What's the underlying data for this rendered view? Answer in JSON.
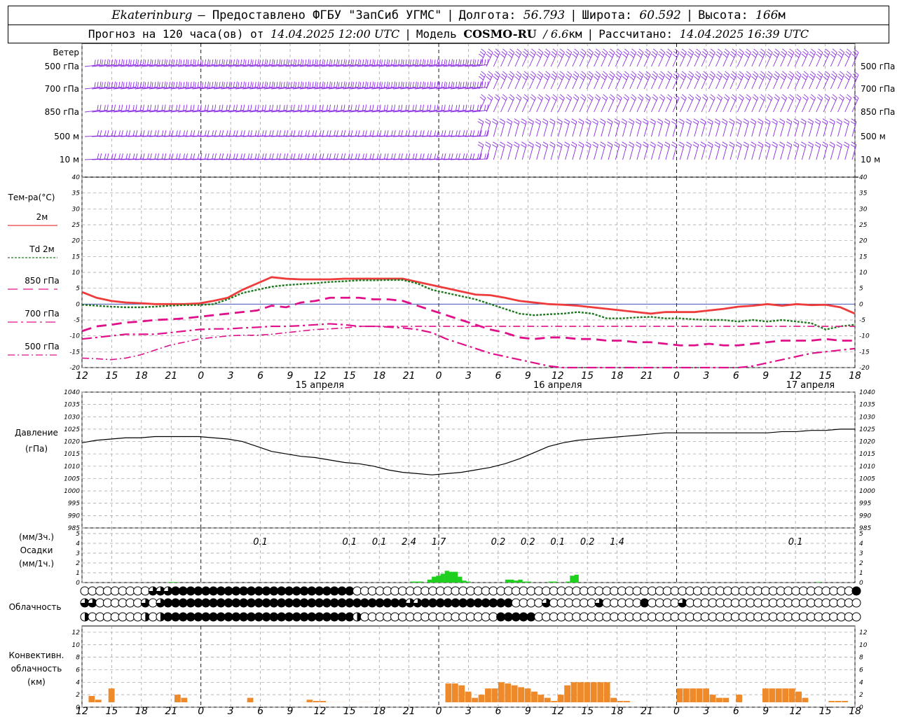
{
  "header": {
    "station": "Ekaterinburg",
    "provider": "— Предоставлено ФГБУ \"ЗапСиб УГМС\"",
    "lon_label": "Долгота:",
    "lon_value": "56.793",
    "lat_label": "Широта:",
    "lat_value": "60.592",
    "alt_label": "Высота:",
    "alt_value": "166",
    "alt_unit": "м",
    "forecast_label": "Прогноз на 120 часа(ов) от",
    "forecast_time": "14.04.2025 12:00 UTC",
    "model_label": "Модель",
    "model_name": "COSMO-RU",
    "model_res": "/ 6.6",
    "model_res_unit": "км",
    "calc_label": "Рассчитано:",
    "calc_time": "14.04.2025 16:39 UTC"
  },
  "colors": {
    "wind": "#8a2be2",
    "t2m": "#ee3b3b",
    "td2m": "#1e7a1e",
    "t850": "#e0108a",
    "precip": "#1ecf1e",
    "conv": "#ef8a2a",
    "grid": "#9a9a9a",
    "zero": "#2a3faa"
  },
  "chart_data": {
    "type": "line",
    "x_ticks": [
      "12",
      "15",
      "18",
      "21",
      "0",
      "3",
      "6",
      "9",
      "12",
      "15",
      "18",
      "21",
      "0",
      "3",
      "6",
      "9",
      "12",
      "15",
      "18",
      "21",
      "0",
      "3",
      "6",
      "9",
      "12",
      "15",
      "18"
    ],
    "date_labels": [
      {
        "label": "15 апреля",
        "index": 8
      },
      {
        "label": "16 апреля",
        "index": 16
      },
      {
        "label": "17 апреля",
        "index": 24.5
      }
    ],
    "wind": {
      "title": "Ветер",
      "levels": [
        "500 гПа",
        "700 гПа",
        "850 гПа",
        "500 м",
        "10  м"
      ]
    },
    "temperature": {
      "title": "Тем-ра(°C)",
      "ylim": [
        -20,
        40
      ],
      "ticks": [
        40,
        35,
        30,
        25,
        20,
        15,
        10,
        5,
        0,
        -5,
        -10,
        -15,
        -20
      ],
      "series": [
        {
          "name": "2м",
          "values": [
            3.8,
            2,
            1,
            0.5,
            0.3,
            0,
            0,
            0,
            0.2,
            1,
            2,
            4.5,
            6.5,
            8.5,
            8,
            7.8,
            7.8,
            7.8,
            8,
            8,
            8,
            8,
            8,
            7,
            6,
            5,
            4,
            3,
            2.8,
            2,
            1,
            0.5,
            0,
            -0.2,
            -0.5,
            -1,
            -1.5,
            -2,
            -2.5,
            -3,
            -2.5,
            -2.5,
            -2.5,
            -2,
            -1.5,
            -0.8,
            -0.5,
            0,
            -0.5,
            0,
            -0.3,
            -0.2,
            -1,
            -3
          ]
        },
        {
          "name": "Td 2м",
          "values": [
            -0.2,
            -0.5,
            -0.8,
            -1,
            -1,
            -0.8,
            -0.5,
            -0.3,
            -0.3,
            0,
            1.5,
            3.5,
            4.5,
            5.5,
            6,
            6.3,
            6.6,
            7,
            7.2,
            7.5,
            7.5,
            7.6,
            7.6,
            6.5,
            4.5,
            3.5,
            2.5,
            1.5,
            0,
            -1.5,
            -3,
            -3.5,
            -3.2,
            -3,
            -2.5,
            -3,
            -4.5,
            -4.5,
            -4.2,
            -4,
            -4.5,
            -4.5,
            -4.8,
            -5,
            -5,
            -5.5,
            -5,
            -5.5,
            -5,
            -5.5,
            -6,
            -8,
            -7,
            -6.5
          ]
        },
        {
          "name": "850 гПа",
          "values": [
            -8.5,
            -7,
            -6.5,
            -5.8,
            -5.5,
            -5,
            -4.8,
            -4.5,
            -4,
            -3.5,
            -3,
            -2.5,
            -2,
            -0.5,
            -1,
            0.5,
            1,
            2,
            2,
            2,
            1.5,
            1.5,
            1,
            -0.5,
            -2,
            -3.5,
            -5,
            -6.5,
            -8,
            -9,
            -10.5,
            -11,
            -10.5,
            -10.5,
            -11,
            -11,
            -11.5,
            -11.5,
            -12,
            -12,
            -12.5,
            -13,
            -13,
            -12.5,
            -13,
            -13,
            -12.5,
            -12,
            -11.5,
            -11.5,
            -11.5,
            -11,
            -11.5,
            -11.5
          ]
        },
        {
          "name": "700 гПа",
          "values": [
            -11,
            -10.5,
            -10,
            -9.5,
            -9.5,
            -9.5,
            -9,
            -8.5,
            -8,
            -7.8,
            -7.8,
            -7.5,
            -7.3,
            -7,
            -7,
            -6.8,
            -6.5,
            -6.2,
            -6.5,
            -7,
            -7,
            -7.2,
            -7.5,
            -8,
            -9,
            -11,
            -12.5,
            -14,
            -15.5,
            -16.5,
            -17.5,
            -18.5,
            -19.5,
            -20,
            -20,
            -20,
            -20,
            -20,
            -20,
            -20,
            -20,
            -20,
            -20,
            -20,
            -20,
            -20,
            -19.5,
            -18.5,
            -17.5,
            -16.5,
            -15.5,
            -15,
            -14.5,
            -14
          ]
        },
        {
          "name": "500 гПа",
          "values": [
            -17,
            -17.2,
            -17.5,
            -17,
            -16,
            -14.5,
            -13,
            -12,
            -11,
            -10.5,
            -10,
            -9.8,
            -9.8,
            -9.5,
            -9,
            -8.5,
            -8,
            -7.8,
            -7.5,
            -7,
            -7,
            -7,
            -7,
            -7,
            -7,
            -7,
            -7,
            -7,
            -7,
            -7,
            -7,
            -7,
            -7,
            -7,
            -7,
            -7,
            -7,
            -7,
            -7,
            -7,
            -7,
            -7,
            -7,
            -7,
            -7,
            -7,
            -7,
            -7,
            -7,
            -7,
            -7,
            -7,
            -7,
            -7
          ]
        }
      ]
    },
    "pressure": {
      "title": "Давление",
      "unit": "(гПа)",
      "ylim": [
        985,
        1040
      ],
      "ticks": [
        1040,
        1035,
        1030,
        1025,
        1020,
        1015,
        1010,
        1005,
        1000,
        995,
        990,
        985
      ],
      "values": [
        1019.5,
        1020.5,
        1021,
        1021.5,
        1021.5,
        1022,
        1022,
        1022,
        1022,
        1021.5,
        1021,
        1020,
        1018,
        1016,
        1015,
        1014,
        1013.5,
        1012.5,
        1011.5,
        1011,
        1010,
        1008.5,
        1007.5,
        1007,
        1006.5,
        1007,
        1007.5,
        1008.5,
        1009.5,
        1011,
        1013,
        1015.5,
        1018,
        1019.5,
        1020.5,
        1021,
        1021.5,
        1022,
        1022.5,
        1023,
        1023.5,
        1023.5,
        1023.5,
        1023.5,
        1023.5,
        1023.5,
        1023.5,
        1023.5,
        1024,
        1024,
        1024.5,
        1024.5,
        1025,
        1025
      ]
    },
    "precip": {
      "title": "Осадки",
      "unit3": "(мм/3ч.)",
      "unit1": "(мм/1ч.)",
      "ylim": [
        0,
        5
      ],
      "ticks": [
        5,
        4,
        3,
        2,
        1,
        0
      ],
      "labels": [
        {
          "text": "0.1",
          "index": 6
        },
        {
          "text": "0.1",
          "index": 9
        },
        {
          "text": "0.1",
          "index": 10
        },
        {
          "text": "2.4",
          "index": 11
        },
        {
          "text": "1.7",
          "index": 12
        },
        {
          "text": "0.2",
          "index": 14
        },
        {
          "text": "0.2",
          "index": 15
        },
        {
          "text": "0.1",
          "index": 16
        },
        {
          "text": "0.2",
          "index": 17
        },
        {
          "text": "1.4",
          "index": 18
        },
        {
          "text": "0.1",
          "index": 24
        }
      ],
      "values": [
        0,
        0,
        0,
        0,
        0,
        0,
        0,
        0,
        0,
        0,
        0,
        0,
        0,
        0,
        0,
        0,
        0,
        0,
        0,
        0,
        0.05,
        0.05,
        0,
        0,
        0,
        0,
        0,
        0,
        0,
        0,
        0,
        0,
        0,
        0,
        0,
        0,
        0,
        0,
        0,
        0,
        0,
        0,
        0,
        0,
        0,
        0,
        0,
        0,
        0,
        0,
        0,
        0,
        0,
        0,
        0,
        0,
        0,
        0,
        0,
        0,
        0,
        0,
        0,
        0,
        0,
        0,
        0,
        0,
        0,
        0,
        0,
        0,
        0,
        0,
        0,
        0,
        0.1,
        0.1,
        0.1,
        0,
        0.3,
        0.6,
        0.7,
        0.9,
        1.2,
        1.1,
        1.1,
        0.6,
        0.2,
        0.1,
        0,
        0,
        0,
        0,
        0,
        0,
        0,
        0,
        0.3,
        0.3,
        0.2,
        0.3,
        0.1,
        0.1,
        0,
        0,
        0,
        0,
        0.1,
        0.1,
        0,
        0,
        0.1,
        0.7,
        0.8,
        0,
        0,
        0,
        0,
        0,
        0,
        0,
        0,
        0,
        0,
        0,
        0,
        0,
        0,
        0,
        0,
        0,
        0,
        0,
        0,
        0,
        0,
        0,
        0,
        0,
        0,
        0,
        0,
        0,
        0,
        0,
        0,
        0,
        0,
        0,
        0,
        0,
        0,
        0,
        0,
        0,
        0,
        0,
        0,
        0,
        0,
        0,
        0,
        0,
        0,
        0,
        0,
        0,
        0,
        0,
        0.05,
        0,
        0,
        0,
        0,
        0,
        0,
        0,
        0
      ]
    },
    "clouds": {
      "title": "Облачность",
      "rows": [
        "0000000003334444444444444444444444440000000000000000000000000000000000000000000000000000000000000000004",
        "3300000030344444444444444444444444444444444334444444444440000300000030000040000300000000000000000000000",
        "2000000020244444444444444444444444442000000000000000000444440000000000000000000000000000000000000000000"
      ]
    },
    "convective": {
      "title1": "Конвективн.",
      "title2": "облачность",
      "unit": "(км)",
      "ylim": [
        0,
        13
      ],
      "ticks": [
        12,
        10,
        8,
        6,
        4,
        2,
        0
      ],
      "values": [
        0,
        1.8,
        1.2,
        0,
        3,
        0,
        0,
        0,
        0,
        0,
        0,
        0,
        0,
        0,
        2,
        1.5,
        0,
        0,
        0,
        0,
        0,
        0,
        0,
        0,
        0,
        1.5,
        0,
        0.2,
        0.3,
        0.3,
        0.3,
        0.3,
        0.5,
        0.8,
        1.2,
        1,
        1,
        0.8,
        0.8,
        0.8,
        0.5,
        0.5,
        0.8,
        0.8,
        0.4,
        0.3,
        0.3,
        0.3,
        0.2,
        0.2,
        0.2,
        0.1,
        0.1,
        0.1,
        0,
        3.8,
        3.8,
        3.5,
        2.5,
        1.5,
        2,
        3,
        3,
        4,
        3.8,
        3.5,
        3.2,
        3,
        2.5,
        2,
        1.5,
        1,
        2,
        3.5,
        4,
        4,
        4,
        4,
        4,
        4,
        1.5,
        1,
        1,
        0.8,
        0.5,
        0.3,
        0.1,
        0.1,
        0,
        0,
        3,
        3,
        3,
        3,
        3,
        2,
        1.5,
        1.5,
        0,
        2,
        0,
        0,
        0,
        3,
        3,
        3,
        3,
        3,
        2.5,
        1.5,
        0,
        0,
        0,
        1,
        1,
        1,
        0
      ]
    }
  }
}
